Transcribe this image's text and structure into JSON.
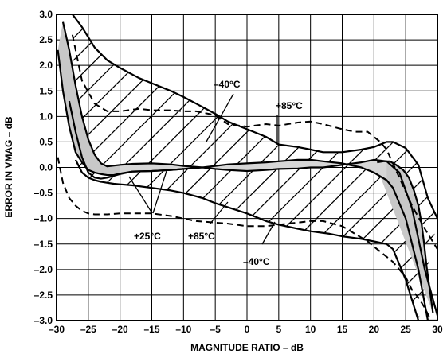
{
  "chart_data": {
    "type": "line",
    "xlabel": "MAGNITUDE RATIO – dB",
    "ylabel": "ERROR IN VMAG – dB",
    "xlim": [
      -30,
      30
    ],
    "ylim": [
      -3.0,
      3.0
    ],
    "x_ticks": [
      "–30",
      "–25",
      "–20",
      "–15",
      "–10",
      "–5",
      "0",
      "5",
      "10",
      "15",
      "20",
      "25",
      "30"
    ],
    "y_ticks": [
      "3.0",
      "2.5",
      "2.0",
      "1.5",
      "1.0",
      "0.5",
      "0.0",
      "–0.5",
      "–1.0",
      "–1.5",
      "–2.0",
      "–2.5",
      "–3.0"
    ],
    "grid": true,
    "annotations": [
      "–40°C",
      "+85°C",
      "+25°C",
      "+85°C",
      "–40°C"
    ],
    "series": [
      {
        "style": "solid",
        "x": [
          -27.5,
          -26,
          -24,
          -22,
          -20,
          -17,
          -15,
          -12,
          -10,
          -8,
          -5,
          -3,
          0,
          3,
          5,
          8,
          10,
          12,
          15,
          18,
          20,
          22,
          23,
          25,
          27,
          28.5,
          30
        ],
        "y": [
          3.0,
          2.75,
          2.35,
          2.1,
          1.95,
          1.75,
          1.65,
          1.5,
          1.38,
          1.25,
          1.05,
          0.9,
          0.75,
          0.6,
          0.45,
          0.4,
          0.35,
          0.3,
          0.3,
          0.35,
          0.4,
          0.5,
          0.5,
          0.38,
          0.05,
          -0.6,
          -1.0
        ]
      },
      {
        "style": "solid",
        "x": [
          -29,
          -28,
          -27,
          -26,
          -25,
          -24,
          -23,
          -22,
          -20,
          -18,
          -15,
          -12,
          -10,
          -7,
          -5,
          -3,
          0,
          3,
          5,
          8,
          10,
          12,
          15,
          18,
          20,
          22,
          24,
          26,
          28,
          30
        ],
        "y": [
          2.85,
          2.3,
          1.6,
          1.0,
          0.55,
          0.25,
          0.08,
          0.02,
          0.05,
          0.07,
          0.08,
          0.06,
          0.03,
          0.0,
          -0.03,
          -0.05,
          -0.07,
          -0.05,
          -0.03,
          -0.02,
          0.0,
          0.0,
          0.05,
          0.1,
          0.15,
          0.12,
          -0.1,
          -0.8,
          -2.0,
          -2.9
        ]
      },
      {
        "style": "solid",
        "x": [
          -28,
          -27,
          -26,
          -25,
          -24,
          -23,
          -22,
          -20,
          -18,
          -15,
          -12,
          -10,
          -7,
          -5,
          -3,
          0,
          3,
          5,
          8,
          10,
          12,
          15,
          18,
          20,
          22,
          23,
          25,
          27,
          28.5,
          30
        ],
        "y": [
          1.3,
          0.7,
          0.2,
          -0.1,
          -0.2,
          -0.22,
          -0.2,
          -0.13,
          -0.08,
          -0.07,
          -0.05,
          -0.03,
          0.0,
          0.03,
          0.06,
          0.08,
          0.1,
          0.12,
          0.15,
          0.15,
          0.12,
          0.08,
          0.0,
          -0.1,
          -0.25,
          -0.4,
          -1.0,
          -2.0,
          -3.0,
          -3.0
        ]
      },
      {
        "style": "solid",
        "x": [
          -27,
          -26,
          -25,
          -24,
          -23,
          -22,
          -21,
          -20,
          -18,
          -15,
          -12,
          -10,
          -7,
          -5,
          -3,
          0,
          3,
          5,
          8,
          10,
          13,
          15,
          18,
          20,
          22,
          23,
          24,
          25,
          26,
          27
        ],
        "y": [
          0.15,
          -0.1,
          -0.2,
          -0.25,
          -0.28,
          -0.3,
          -0.32,
          -0.33,
          -0.35,
          -0.4,
          -0.45,
          -0.5,
          -0.6,
          -0.7,
          -0.78,
          -0.9,
          -1.05,
          -1.12,
          -1.2,
          -1.25,
          -1.3,
          -1.35,
          -1.4,
          -1.45,
          -1.5,
          -1.6,
          -1.9,
          -2.2,
          -2.6,
          -3.0
        ]
      },
      {
        "style": "shaded-band",
        "x": [
          -29.8,
          -29,
          -28,
          -27,
          -26,
          -25,
          -24,
          -23,
          -22,
          -21,
          -20,
          -18,
          -15,
          -12,
          -10
        ],
        "y": [
          2.3,
          1.5,
          0.8,
          0.3,
          0.1,
          -0.05,
          -0.1,
          -0.13,
          -0.15,
          -0.15,
          -0.12,
          -0.08,
          -0.07,
          -0.05,
          -0.03
        ]
      },
      {
        "style": "shaded-band",
        "x": [
          29.3,
          28.8,
          28.3,
          27.9,
          27.5,
          27.0,
          26.3,
          25.5,
          24.6,
          23.5,
          22.5,
          21.5,
          20.5
        ],
        "y": [
          -2.85,
          -2.4,
          -1.95,
          -1.5,
          -1.1,
          -0.75,
          -0.45,
          -0.2,
          -0.05,
          0.05,
          0.12,
          0.12,
          0.1
        ]
      },
      {
        "style": "dashed",
        "x": [
          -27.5,
          -27,
          -26,
          -24,
          -22,
          -20,
          -17,
          -15,
          -12,
          -10,
          -8,
          -6,
          -5,
          -3,
          0,
          3,
          5,
          8,
          10,
          12,
          15,
          17,
          19,
          20,
          21,
          22,
          24,
          26,
          28,
          30
        ],
        "y": [
          2.6,
          2.3,
          1.7,
          1.25,
          1.1,
          1.1,
          1.15,
          1.12,
          1.12,
          1.1,
          1.1,
          1.05,
          1.02,
          0.85,
          0.8,
          0.85,
          0.82,
          0.88,
          0.9,
          0.85,
          0.75,
          0.7,
          0.7,
          0.6,
          0.5,
          0.35,
          -0.2,
          -0.75,
          -1.2,
          -1.6
        ]
      },
      {
        "style": "dashed",
        "x": [
          -29.8,
          -29,
          -28,
          -27,
          -26,
          -25,
          -24,
          -23,
          -22,
          -20,
          -18,
          -15,
          -12,
          -10,
          -8,
          -5,
          -3,
          0,
          3,
          5,
          8,
          10,
          12,
          15,
          17,
          19,
          20,
          21,
          22,
          23,
          25,
          26,
          27,
          28,
          29
        ],
        "y": [
          0.2,
          -0.3,
          -0.6,
          -0.75,
          -0.85,
          -0.9,
          -0.92,
          -0.92,
          -0.92,
          -0.9,
          -0.9,
          -0.9,
          -0.95,
          -1.0,
          -1.05,
          -1.08,
          -1.1,
          -1.15,
          -1.15,
          -1.12,
          -1.08,
          -1.05,
          -1.05,
          -1.15,
          -1.3,
          -1.45,
          -1.55,
          -1.65,
          -1.75,
          -1.85,
          -2.15,
          -2.4,
          -2.55,
          -2.75,
          -3.0
        ]
      }
    ]
  }
}
